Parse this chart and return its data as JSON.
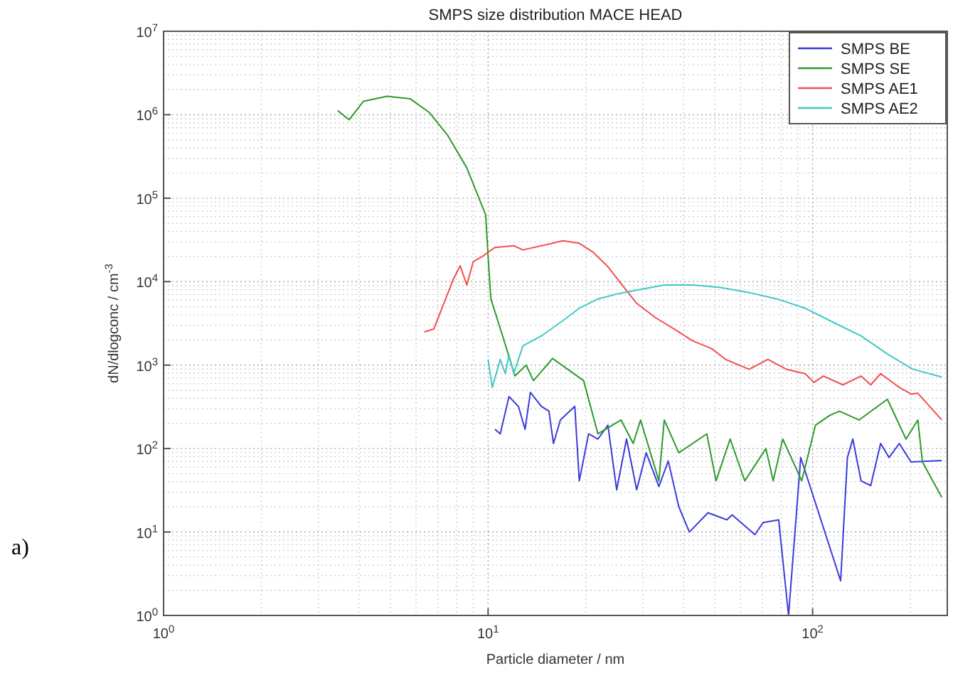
{
  "chart_data": {
    "type": "line",
    "title": "SMPS size distribution  MACE HEAD",
    "xlabel": "Particle diameter / nm",
    "ylabel": "dN/dlogconc / cm$^{-3}$",
    "annotations": [
      "a)"
    ],
    "log": "xy",
    "grid": true,
    "legend": "top right",
    "marker": "none",
    "line_style": "solid",
    "xlim": [
      1,
      260
    ],
    "ylim": [
      1,
      10000000
    ],
    "xticks": [
      {
        "value": 1,
        "label": "10$^{0}$"
      },
      {
        "value": 10,
        "label": "10$^{1}$"
      },
      {
        "value": 100,
        "label": "10$^{2}$"
      }
    ],
    "yticks": [
      {
        "value": 1,
        "label": "10$^{0}$"
      },
      {
        "value": 10,
        "label": "10$^{1}$"
      },
      {
        "value": 100,
        "label": "10$^{2}$"
      },
      {
        "value": 1000,
        "label": "10$^{3}$"
      },
      {
        "value": 10000,
        "label": "10$^{4}$"
      },
      {
        "value": 100000,
        "label": "10$^{5}$"
      },
      {
        "value": 1000000,
        "label": "10$^{6}$"
      },
      {
        "value": 10000000,
        "label": "10$^{7}$"
      }
    ],
    "series": [
      {
        "name": "SMPS BE",
        "color": "#3b3bdc",
        "x": [
          10.5,
          10.9,
          11.6,
          12.4,
          13.0,
          13.5,
          14.6,
          15.4,
          15.9,
          16.7,
          18.5,
          19.1,
          20.4,
          21.8,
          23.4,
          24.9,
          26.7,
          28.7,
          30.7,
          33.6,
          35.9,
          38.7,
          41.7,
          47.6,
          54.4,
          56.5,
          66.4,
          70.4,
          78.6,
          84.3,
          91.9,
          122,
          128,
          133,
          141,
          151,
          162,
          172,
          185,
          201,
          250
        ],
        "values": [
          170,
          150,
          420,
          320,
          170,
          470,
          320,
          280,
          115,
          220,
          320,
          41,
          150,
          130,
          190,
          32,
          130,
          32,
          89,
          35,
          71,
          20,
          10,
          17,
          14,
          16,
          9.3,
          13,
          14,
          1,
          78,
          2.6,
          78,
          130,
          41,
          36,
          115,
          78,
          115,
          69,
          72
        ]
      },
      {
        "name": "SMPS SE",
        "color": "#2e9a2e",
        "x": [
          3.44,
          3.73,
          4.13,
          4.88,
          5.76,
          6.58,
          7.52,
          8.6,
          9.2,
          9.83,
          10.0,
          10.2,
          11.1,
          12.1,
          13.1,
          13.8,
          15.8,
          19.7,
          21.8,
          25.7,
          28.0,
          29.5,
          33.6,
          34.9,
          38.7,
          47.2,
          50.4,
          55.7,
          61.8,
          71.8,
          75.6,
          80.9,
          92.6,
          102,
          113,
          121,
          139,
          170,
          194,
          211,
          218,
          250
        ],
        "values": [
          1120000,
          870000,
          1450000,
          1660000,
          1550000,
          1070000,
          560000,
          230000,
          120000,
          63000,
          20000,
          6200,
          2200,
          740,
          1000,
          650,
          1200,
          650,
          150,
          220,
          115,
          220,
          41,
          220,
          89,
          150,
          41,
          130,
          41,
          100,
          41,
          130,
          41,
          190,
          250,
          280,
          220,
          390,
          130,
          220,
          69,
          26
        ]
      },
      {
        "name": "SMPS AE1",
        "color": "#f05050",
        "x": [
          6.36,
          6.8,
          7.8,
          8.2,
          8.6,
          9.0,
          9.5,
          10.5,
          12.0,
          12.8,
          14.6,
          17.0,
          19.1,
          21.1,
          23.4,
          25.9,
          28.7,
          32.8,
          37.5,
          42.7,
          48.8,
          53.9,
          63.7,
          72.8,
          83.1,
          94.8,
          101,
          108,
          124,
          141,
          151,
          162,
          185,
          201,
          211,
          250
        ],
        "values": [
          2500,
          2700,
          10500,
          15500,
          9100,
          17400,
          19500,
          25700,
          26900,
          24000,
          26900,
          30900,
          28800,
          22400,
          15100,
          9100,
          5500,
          3700,
          2700,
          1950,
          1580,
          1170,
          890,
          1170,
          890,
          790,
          620,
          740,
          580,
          740,
          580,
          790,
          540,
          450,
          460,
          220
        ]
      },
      {
        "name": "SMPS AE2",
        "color": "#40c8c8",
        "x": [
          10.0,
          10.3,
          10.9,
          11.3,
          11.6,
          12.0,
          12.8,
          14.6,
          16.7,
          19.1,
          21.8,
          24.9,
          28.7,
          34.9,
          42.7,
          52.1,
          63.7,
          77.8,
          94.8,
          116,
          141,
          172,
          204,
          250
        ],
        "values": [
          1170,
          540,
          1170,
          790,
          1320,
          790,
          1700,
          2240,
          3240,
          4800,
          6200,
          7100,
          7900,
          9100,
          9100,
          8500,
          7400,
          6200,
          4800,
          3240,
          2240,
          1320,
          890,
          720
        ]
      }
    ]
  }
}
